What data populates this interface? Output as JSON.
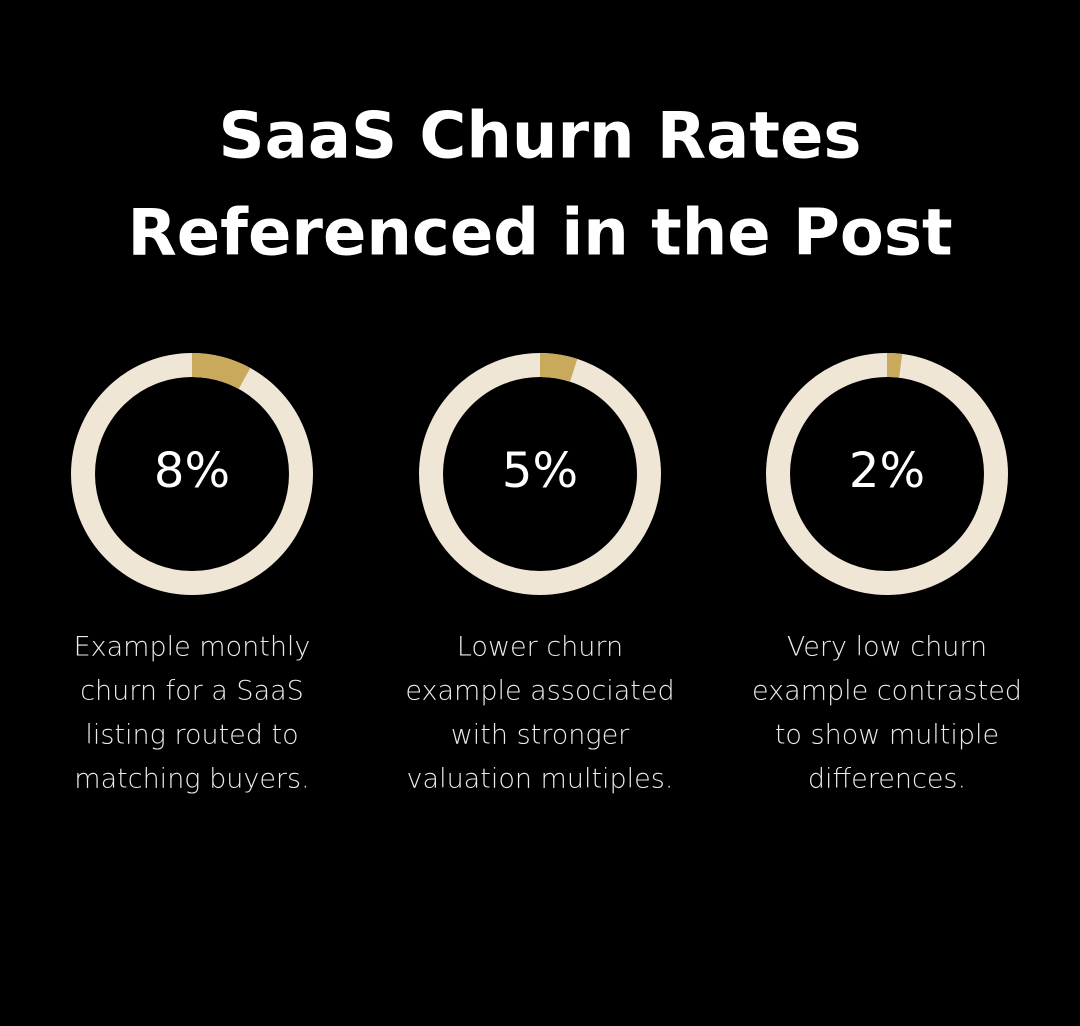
{
  "title_lines": [
    "SaaS Churn Rates",
    "Referenced in the Post"
  ],
  "chart_data": [
    {
      "type": "donut",
      "values": [
        8
      ],
      "value_labels": [
        "8%"
      ],
      "color": "#c9a95c",
      "track_color": "#efe6d6",
      "caption_lines": [
        "Example monthly",
        "churn for a SaaS",
        "listing routed to",
        "matching buyers."
      ]
    },
    {
      "type": "donut",
      "values": [
        5
      ],
      "value_labels": [
        "5%"
      ],
      "color": "#c9a95c",
      "track_color": "#efe6d6",
      "caption_lines": [
        "Lower churn",
        "example associated",
        "with stronger",
        "valuation multiples."
      ]
    },
    {
      "type": "donut",
      "values": [
        2
      ],
      "value_labels": [
        "2%"
      ],
      "color": "#c9a95c",
      "track_color": "#efe6d6",
      "caption_lines": [
        "Very low churn",
        "example contrasted",
        "to show multiple",
        "differences."
      ]
    }
  ]
}
